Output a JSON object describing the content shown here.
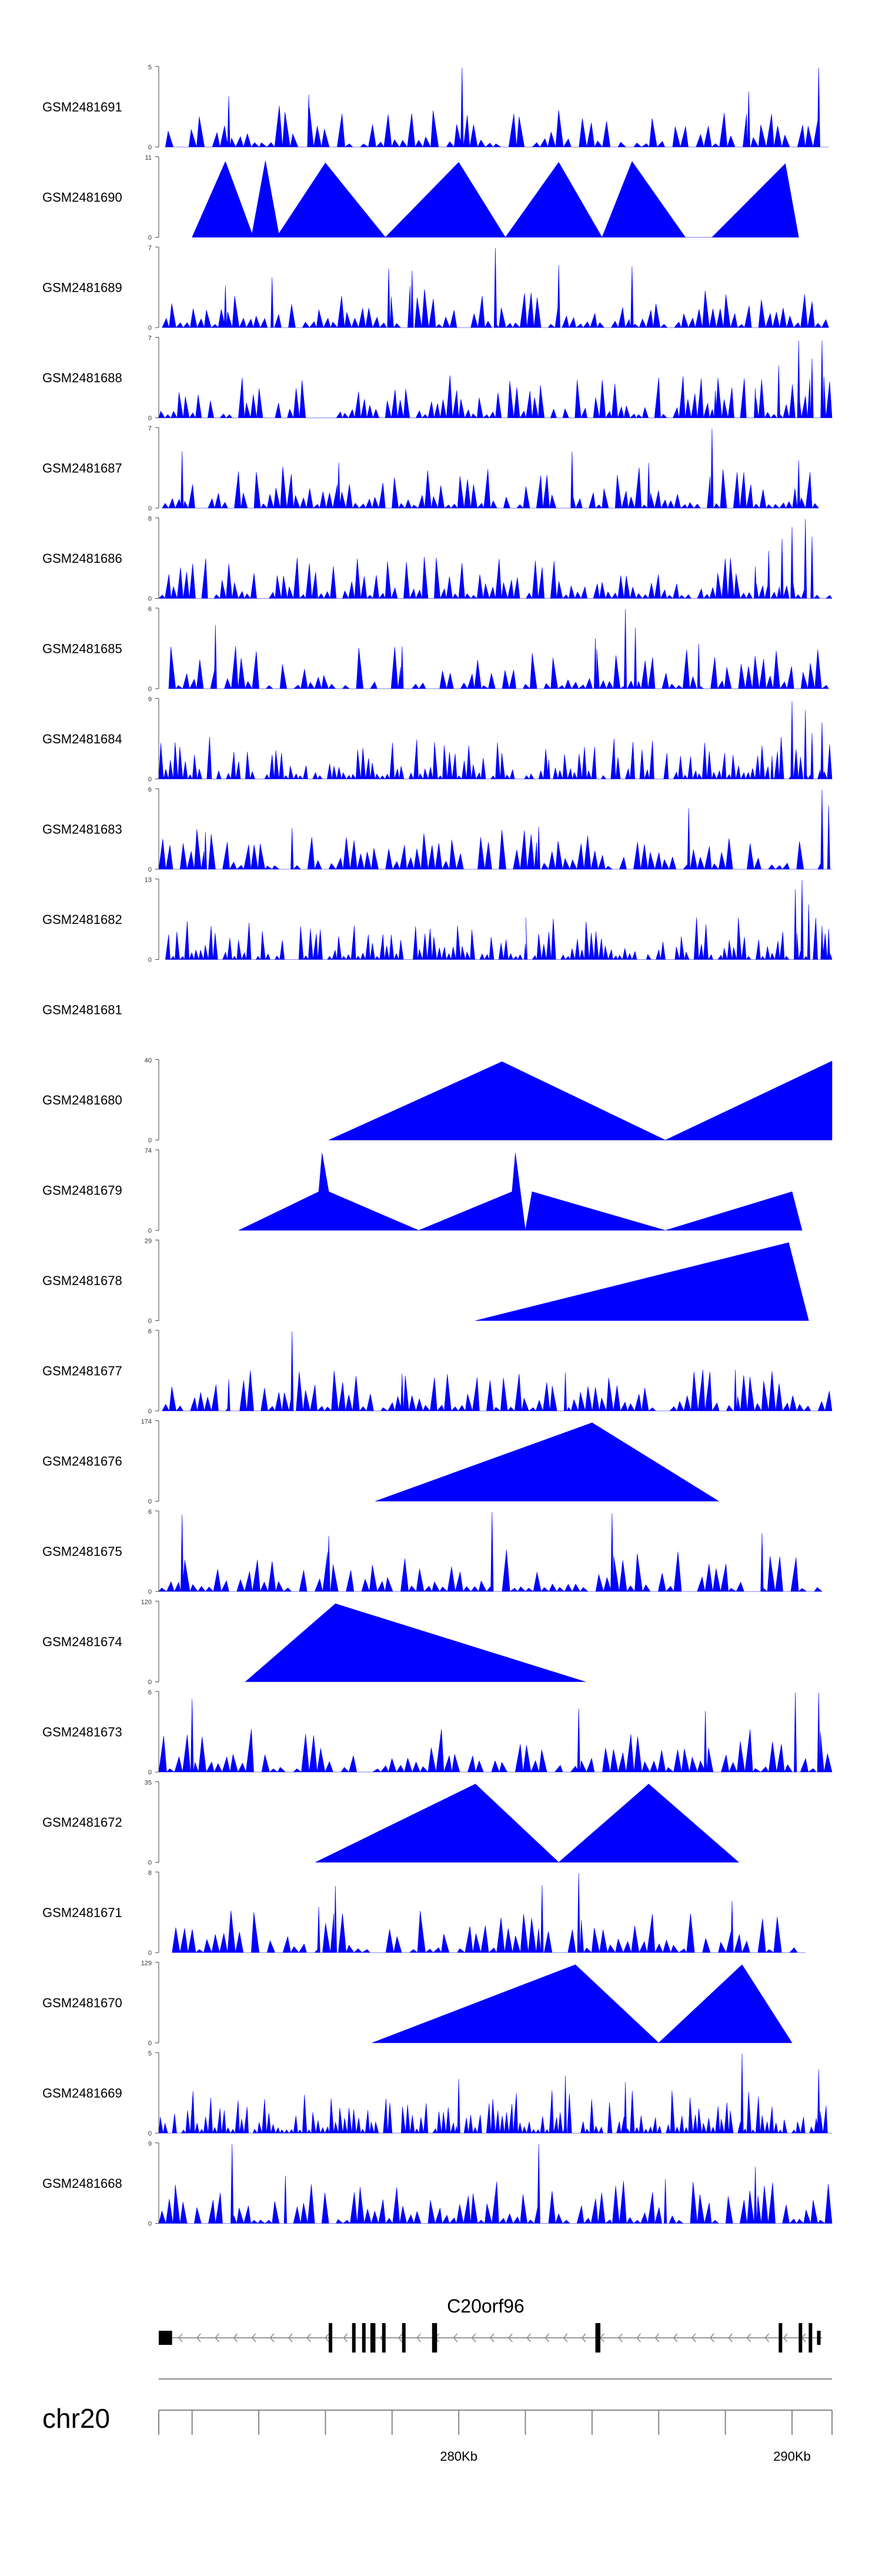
{
  "chart_data": {
    "type": "area",
    "title": "",
    "color": "#0000ff",
    "xrange_kb": [
      271,
      291.2
    ],
    "tracks": [
      {
        "name": "GSM2481691",
        "ymax": "5",
        "ymax_val": 5,
        "ymin": "0",
        "kind": "spiky",
        "n": 85,
        "seed": 91,
        "x_start_kb": 271.2,
        "x_end_kb": 291.1,
        "peaks": [
          [
            280.1,
            5
          ],
          [
            290.8,
            5
          ],
          [
            273.1,
            3.2
          ],
          [
            275.5,
            3.3
          ],
          [
            288.7,
            3.5
          ]
        ]
      },
      {
        "name": "GSM2481690",
        "ymax": "11",
        "ymax_val": 11,
        "ymin": "0",
        "kind": "tri",
        "pts": [
          [
            272.0,
            0
          ],
          [
            273.0,
            10.5
          ],
          [
            273.8,
            0.5
          ],
          [
            274.2,
            10.6
          ],
          [
            274.6,
            0.5
          ],
          [
            276.0,
            10.3
          ],
          [
            277.8,
            0
          ],
          [
            280.0,
            10.4
          ],
          [
            281.4,
            0
          ],
          [
            283.0,
            10.4
          ],
          [
            284.3,
            0
          ],
          [
            285.2,
            10.5
          ],
          [
            286.8,
            0
          ],
          [
            287.6,
            0
          ],
          [
            289.8,
            10.2
          ],
          [
            290.2,
            0
          ]
        ]
      },
      {
        "name": "GSM2481689",
        "ymax": "7",
        "ymax_val": 7,
        "ymin": "0",
        "kind": "spiky",
        "n": 95,
        "seed": 89,
        "x_start_kb": 271.1,
        "x_end_kb": 291.1,
        "peaks": [
          [
            281.1,
            7
          ],
          [
            283.0,
            5.5
          ],
          [
            285.2,
            5.4
          ],
          [
            277.9,
            5.2
          ],
          [
            278.6,
            5.0
          ],
          [
            273.0,
            3.7
          ],
          [
            274.4,
            4.4
          ]
        ]
      },
      {
        "name": "GSM2481688",
        "ymax": "7",
        "ymax_val": 7,
        "ymin": "0",
        "kind": "spiky",
        "n": 110,
        "seed": 88,
        "x_start_kb": 271.0,
        "x_end_kb": 291.2,
        "peaks": [
          [
            290.2,
            6.8
          ],
          [
            290.9,
            6.8
          ],
          [
            289.6,
            4.6
          ],
          [
            288.9,
            2.6
          ],
          [
            287.7,
            2.4
          ],
          [
            290.6,
            5.2
          ]
        ]
      },
      {
        "name": "GSM2481687",
        "ymax": "7",
        "ymax_val": 7,
        "ymin": "0",
        "kind": "spiky",
        "n": 100,
        "seed": 87,
        "x_start_kb": 271.1,
        "x_end_kb": 290.8,
        "peaks": [
          [
            287.6,
            7
          ],
          [
            283.4,
            5.0
          ],
          [
            271.7,
            5.0
          ],
          [
            276.4,
            4.0
          ],
          [
            285.7,
            4.0
          ],
          [
            290.2,
            4.2
          ]
        ]
      },
      {
        "name": "GSM2481686",
        "ymax": "8",
        "ymax_val": 8,
        "ymin": "0",
        "kind": "spiky",
        "n": 110,
        "seed": 86,
        "x_start_kb": 271.0,
        "x_end_kb": 291.2,
        "peaks": [
          [
            290.4,
            8
          ],
          [
            290.0,
            7.2
          ],
          [
            289.7,
            6.0
          ],
          [
            290.6,
            6.2
          ],
          [
            289.3,
            4.8
          ],
          [
            288.9,
            3.2
          ]
        ]
      },
      {
        "name": "GSM2481685",
        "ymax": "6",
        "ymax_val": 6,
        "ymin": "0",
        "kind": "spiky",
        "n": 95,
        "seed": 85,
        "x_start_kb": 271.3,
        "x_end_kb": 291.1,
        "peaks": [
          [
            285.0,
            6.0
          ],
          [
            285.3,
            4.6
          ],
          [
            272.7,
            4.8
          ],
          [
            284.1,
            3.8
          ],
          [
            287.2,
            3.4
          ],
          [
            278.3,
            3.2
          ]
        ]
      },
      {
        "name": "GSM2481684",
        "ymax": "9",
        "ymax_val": 9,
        "ymin": "0",
        "kind": "spiky",
        "n": 140,
        "seed": 84,
        "x_start_kb": 271.0,
        "x_end_kb": 291.2,
        "peaks": [
          [
            290.0,
            8.8
          ],
          [
            290.4,
            7.8
          ],
          [
            290.9,
            6.4
          ],
          [
            290.6,
            5.2
          ],
          [
            282.7,
            2.2
          ],
          [
            289.4,
            2.6
          ]
        ]
      },
      {
        "name": "GSM2481683",
        "ymax": "6",
        "ymax_val": 6,
        "ymin": "0",
        "kind": "spiky",
        "n": 95,
        "seed": 83,
        "x_start_kb": 271.0,
        "x_end_kb": 291.2,
        "peaks": [
          [
            290.9,
            6
          ],
          [
            291.1,
            4.8
          ],
          [
            286.9,
            4.6
          ],
          [
            275.0,
            3.1
          ],
          [
            282.4,
            3.2
          ],
          [
            272.4,
            2.8
          ]
        ]
      },
      {
        "name": "GSM2481682",
        "ymax": "13",
        "ymax_val": 13,
        "ymin": "0",
        "kind": "spiky",
        "n": 140,
        "seed": 82,
        "x_start_kb": 271.2,
        "x_end_kb": 291.2,
        "peaks": [
          [
            290.3,
            13
          ],
          [
            290.1,
            11.5
          ],
          [
            290.5,
            9.0
          ],
          [
            290.9,
            5.5
          ],
          [
            291.1,
            5.0
          ],
          [
            282.0,
            2.6
          ]
        ]
      },
      {
        "name": "GSM2481681",
        "ymax": "",
        "ymax_val": 0,
        "ymin": "",
        "kind": "empty"
      },
      {
        "name": "GSM2481680",
        "ymax": "40",
        "ymax_val": 40,
        "ymin": "0",
        "kind": "tri",
        "pts": [
          [
            276.1,
            0
          ],
          [
            281.3,
            39.5
          ],
          [
            286.2,
            0
          ],
          [
            291.2,
            39.8
          ],
          [
            291.2,
            0
          ]
        ]
      },
      {
        "name": "GSM2481679",
        "ymax": "74",
        "ymax_val": 74,
        "ymin": "0",
        "kind": "tri",
        "pts": [
          [
            273.4,
            0
          ],
          [
            275.8,
            36
          ],
          [
            275.9,
            72
          ],
          [
            276.1,
            36
          ],
          [
            278.8,
            0
          ],
          [
            281.6,
            36
          ],
          [
            281.7,
            72
          ],
          [
            281.85,
            36
          ],
          [
            282.0,
            0
          ],
          [
            282.2,
            36
          ],
          [
            286.2,
            0
          ],
          [
            290.0,
            36
          ],
          [
            290.3,
            0
          ]
        ]
      },
      {
        "name": "GSM2481678",
        "ymax": "29",
        "ymax_val": 29,
        "ymin": "0",
        "kind": "tri",
        "pts": [
          [
            280.5,
            0
          ],
          [
            289.9,
            28.5
          ],
          [
            290.5,
            0
          ]
        ]
      },
      {
        "name": "GSM2481677",
        "ymax": "6",
        "ymax_val": 6,
        "ymin": "0",
        "kind": "spiky",
        "n": 95,
        "seed": 77,
        "x_start_kb": 271.1,
        "x_end_kb": 291.2,
        "peaks": [
          [
            275.0,
            6
          ],
          [
            273.1,
            2.4
          ],
          [
            278.3,
            2.8
          ],
          [
            283.2,
            2.9
          ],
          [
            288.3,
            3.1
          ]
        ]
      },
      {
        "name": "GSM2481676",
        "ymax": "174",
        "ymax_val": 174,
        "ymin": "0",
        "kind": "tri",
        "pts": [
          [
            277.5,
            0
          ],
          [
            284.0,
            172
          ],
          [
            287.8,
            0
          ]
        ]
      },
      {
        "name": "GSM2481675",
        "ymax": "6",
        "ymax_val": 6,
        "ymin": "0",
        "kind": "spiky",
        "n": 85,
        "seed": 75,
        "x_start_kb": 271.0,
        "x_end_kb": 290.9,
        "peaks": [
          [
            281.0,
            6
          ],
          [
            271.7,
            5.8
          ],
          [
            284.6,
            5.9
          ],
          [
            276.1,
            4.2
          ],
          [
            289.1,
            4.4
          ]
        ]
      },
      {
        "name": "GSM2481674",
        "ymax": "120",
        "ymax_val": 120,
        "ymin": "0",
        "kind": "tri",
        "pts": [
          [
            273.6,
            0
          ],
          [
            276.3,
            118
          ],
          [
            283.8,
            0
          ]
        ]
      },
      {
        "name": "GSM2481673",
        "ymax": "6",
        "ymax_val": 6,
        "ymin": "0",
        "kind": "spiky",
        "n": 85,
        "seed": 73,
        "x_start_kb": 271.0,
        "x_end_kb": 291.2,
        "peaks": [
          [
            290.1,
            6
          ],
          [
            290.8,
            6
          ],
          [
            272.0,
            5.5
          ],
          [
            283.6,
            4.8
          ],
          [
            287.4,
            4.6
          ]
        ]
      },
      {
        "name": "GSM2481672",
        "ymax": "35",
        "ymax_val": 35,
        "ymin": "0",
        "kind": "tri",
        "pts": [
          [
            275.7,
            0
          ],
          [
            280.5,
            34.5
          ],
          [
            283.0,
            0
          ],
          [
            285.7,
            34.5
          ],
          [
            288.4,
            0
          ]
        ]
      },
      {
        "name": "GSM2481671",
        "ymax": "8",
        "ymax_val": 8,
        "ymin": "0",
        "kind": "spiky",
        "n": 80,
        "seed": 71,
        "x_start_kb": 271.4,
        "x_end_kb": 290.4,
        "peaks": [
          [
            283.6,
            8
          ],
          [
            276.3,
            6.7
          ],
          [
            282.5,
            6.8
          ],
          [
            288.2,
            5.2
          ],
          [
            275.8,
            4.6
          ]
        ]
      },
      {
        "name": "GSM2481670",
        "ymax": "129",
        "ymax_val": 129,
        "ymin": "0",
        "kind": "tri",
        "pts": [
          [
            277.4,
            0
          ],
          [
            283.5,
            127
          ],
          [
            286.0,
            0
          ],
          [
            288.5,
            127
          ],
          [
            290.0,
            0
          ]
        ]
      },
      {
        "name": "GSM2481669",
        "ymax": "5",
        "ymax_val": 5,
        "ymin": "0",
        "kind": "spiky",
        "n": 150,
        "seed": 69,
        "x_start_kb": 271.0,
        "x_end_kb": 291.2,
        "peaks": [
          [
            288.5,
            5
          ],
          [
            283.2,
            3.6
          ],
          [
            290.8,
            4.0
          ],
          [
            280.0,
            3.4
          ],
          [
            285.0,
            3.2
          ]
        ]
      },
      {
        "name": "GSM2481668",
        "ymax": "9",
        "ymax_val": 9,
        "ymin": "0",
        "kind": "spiky",
        "n": 95,
        "seed": 68,
        "x_start_kb": 271.0,
        "x_end_kb": 291.2,
        "peaks": [
          [
            273.2,
            9
          ],
          [
            282.4,
            9
          ],
          [
            288.9,
            6.4
          ],
          [
            274.8,
            5.4
          ],
          [
            286.2,
            5.0
          ]
        ]
      }
    ],
    "gene": {
      "name": "C20orf96",
      "strand": "-",
      "start_kb": 271.0,
      "end_kb": 290.9,
      "exons_kb": [
        [
          271.0,
          271.4
        ],
        [
          276.1,
          276.2
        ],
        [
          276.8,
          276.9
        ],
        [
          277.1,
          277.2
        ],
        [
          277.35,
          277.5
        ],
        [
          277.7,
          277.8
        ],
        [
          278.3,
          278.4
        ],
        [
          279.2,
          279.35
        ],
        [
          284.1,
          284.25
        ],
        [
          289.6,
          289.7
        ],
        [
          290.2,
          290.3
        ],
        [
          290.5,
          290.6
        ],
        [
          290.75,
          290.85
        ]
      ]
    },
    "chromosome": "chr20",
    "axis": {
      "ticks_kb": [
        271,
        272,
        274,
        276,
        278,
        280,
        282,
        284,
        286,
        288,
        290,
        291.2
      ],
      "labels": [
        {
          "kb": 280,
          "text": "280Kb"
        },
        {
          "kb": 290,
          "text": "290Kb"
        }
      ]
    }
  }
}
